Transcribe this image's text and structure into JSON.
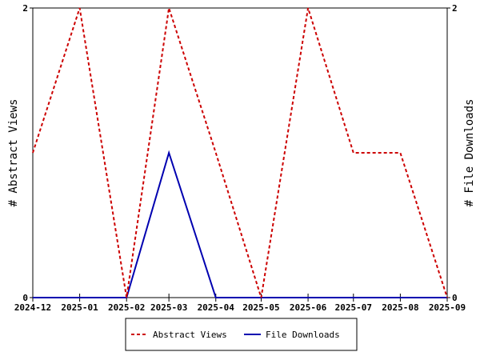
{
  "chart_data": {
    "type": "line",
    "x": [
      "2024-12",
      "2025-01",
      "2025-02",
      "2025-03",
      "2025-04",
      "2025-05",
      "2025-06",
      "2025-07",
      "2025-08",
      "2025-09"
    ],
    "x_days": [
      0,
      31,
      62,
      90,
      121,
      151,
      182,
      212,
      243,
      274
    ],
    "series": [
      {
        "name": "Abstract Views",
        "axis": "left",
        "color": "#cc0000",
        "style": "dashed",
        "values": [
          1,
          2,
          0,
          2,
          1,
          0,
          2,
          1,
          1,
          0
        ]
      },
      {
        "name": "File Downloads",
        "axis": "right",
        "color": "#0000b0",
        "style": "solid",
        "values": [
          0,
          0,
          0,
          1,
          0,
          0,
          0,
          0,
          0,
          0
        ]
      }
    ],
    "ylabel_left": "# Abstract Views",
    "ylabel_right": "# File Downloads",
    "ylim_left": [
      0,
      2
    ],
    "ylim_right": [
      0,
      2
    ],
    "yticks_left": [
      "0",
      "2"
    ],
    "yticks_right": [
      "0",
      "2"
    ],
    "grid": false,
    "legend_position": "bottom-center"
  }
}
